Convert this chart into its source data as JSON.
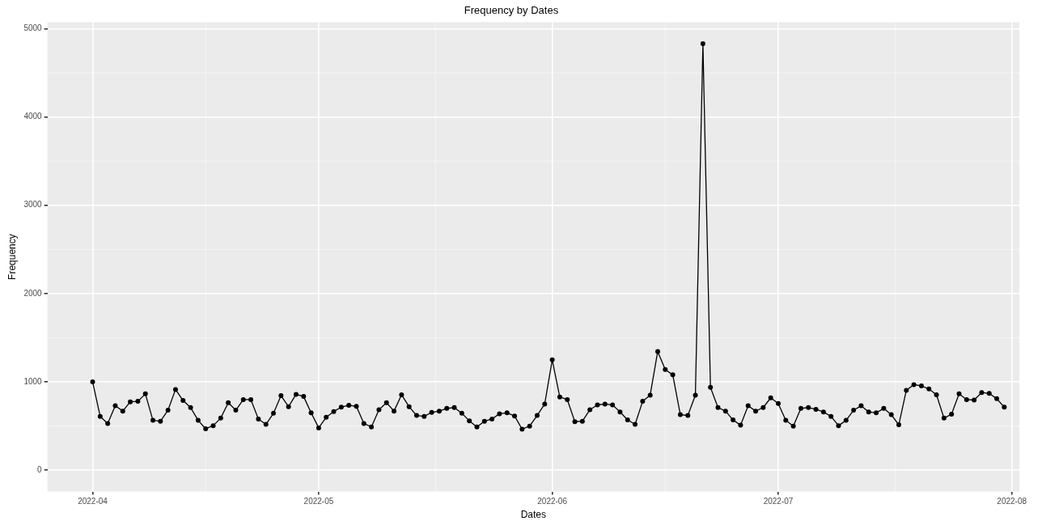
{
  "chart_data": {
    "type": "line",
    "title": "Frequency by Dates",
    "xlabel": "Dates",
    "ylabel": "Frequency",
    "x": [
      "2022-04-01",
      "2022-04-02",
      "2022-04-03",
      "2022-04-04",
      "2022-04-05",
      "2022-04-06",
      "2022-04-07",
      "2022-04-08",
      "2022-04-09",
      "2022-04-10",
      "2022-04-11",
      "2022-04-12",
      "2022-04-13",
      "2022-04-14",
      "2022-04-15",
      "2022-04-16",
      "2022-04-17",
      "2022-04-18",
      "2022-04-19",
      "2022-04-20",
      "2022-04-21",
      "2022-04-22",
      "2022-04-23",
      "2022-04-24",
      "2022-04-25",
      "2022-04-26",
      "2022-04-27",
      "2022-04-28",
      "2022-04-29",
      "2022-04-30",
      "2022-05-01",
      "2022-05-02",
      "2022-05-03",
      "2022-05-04",
      "2022-05-05",
      "2022-05-06",
      "2022-05-07",
      "2022-05-08",
      "2022-05-09",
      "2022-05-10",
      "2022-05-11",
      "2022-05-12",
      "2022-05-13",
      "2022-05-14",
      "2022-05-15",
      "2022-05-16",
      "2022-05-17",
      "2022-05-18",
      "2022-05-19",
      "2022-05-20",
      "2022-05-21",
      "2022-05-22",
      "2022-05-23",
      "2022-05-24",
      "2022-05-25",
      "2022-05-26",
      "2022-05-27",
      "2022-05-28",
      "2022-05-29",
      "2022-05-30",
      "2022-05-31",
      "2022-06-01",
      "2022-06-02",
      "2022-06-03",
      "2022-06-04",
      "2022-06-05",
      "2022-06-06",
      "2022-06-07",
      "2022-06-08",
      "2022-06-09",
      "2022-06-10",
      "2022-06-11",
      "2022-06-12",
      "2022-06-13",
      "2022-06-14",
      "2022-06-15",
      "2022-06-16",
      "2022-06-17",
      "2022-06-18",
      "2022-06-19",
      "2022-06-20",
      "2022-06-21",
      "2022-06-22",
      "2022-06-23",
      "2022-06-24",
      "2022-06-25",
      "2022-06-26",
      "2022-06-27",
      "2022-06-28",
      "2022-06-29",
      "2022-06-30",
      "2022-07-01",
      "2022-07-02",
      "2022-07-03",
      "2022-07-04",
      "2022-07-05",
      "2022-07-06",
      "2022-07-07",
      "2022-07-08",
      "2022-07-09",
      "2022-07-10",
      "2022-07-11",
      "2022-07-12",
      "2022-07-13",
      "2022-07-14",
      "2022-07-15",
      "2022-07-16",
      "2022-07-17",
      "2022-07-18",
      "2022-07-19",
      "2022-07-20",
      "2022-07-21",
      "2022-07-22",
      "2022-07-23",
      "2022-07-24",
      "2022-07-25",
      "2022-07-26",
      "2022-07-27",
      "2022-07-28",
      "2022-07-29",
      "2022-07-30",
      "2022-07-31"
    ],
    "series": [
      {
        "color": "#000000",
        "values": [
          1000,
          610,
          530,
          730,
          670,
          775,
          780,
          865,
          565,
          555,
          680,
          915,
          790,
          710,
          565,
          470,
          505,
          590,
          765,
          680,
          800,
          800,
          580,
          520,
          645,
          845,
          720,
          860,
          835,
          650,
          480,
          600,
          665,
          715,
          735,
          725,
          530,
          490,
          685,
          765,
          670,
          855,
          720,
          620,
          610,
          655,
          670,
          700,
          710,
          645,
          560,
          490,
          555,
          580,
          640,
          650,
          615,
          465,
          500,
          620,
          750,
          1250,
          830,
          800,
          550,
          555,
          685,
          740,
          750,
          740,
          660,
          570,
          520,
          780,
          850,
          1345,
          1140,
          1080,
          630,
          620,
          850,
          4830,
          940,
          710,
          670,
          570,
          510,
          730,
          670,
          710,
          820,
          755,
          565,
          500,
          700,
          710,
          690,
          660,
          610,
          505,
          565,
          680,
          730,
          660,
          650,
          700,
          630,
          515,
          905,
          970,
          955,
          920,
          855,
          590,
          635,
          865,
          800,
          795,
          880,
          870,
          810,
          715
        ]
      }
    ],
    "xlim": [
      "2022-03-26",
      "2022-08-02"
    ],
    "xticks": [
      {
        "value": "2022-04-01",
        "label": "2022-04"
      },
      {
        "value": "2022-05-01",
        "label": "2022-05"
      },
      {
        "value": "2022-06-01",
        "label": "2022-06"
      },
      {
        "value": "2022-07-01",
        "label": "2022-07"
      },
      {
        "value": "2022-08-01",
        "label": "2022-08"
      }
    ],
    "ylim": [
      -241,
      5071
    ],
    "yticks": [
      0,
      1000,
      2000,
      3000,
      4000,
      5000
    ],
    "grid": true,
    "marker": "circle",
    "line_style": "solid"
  }
}
